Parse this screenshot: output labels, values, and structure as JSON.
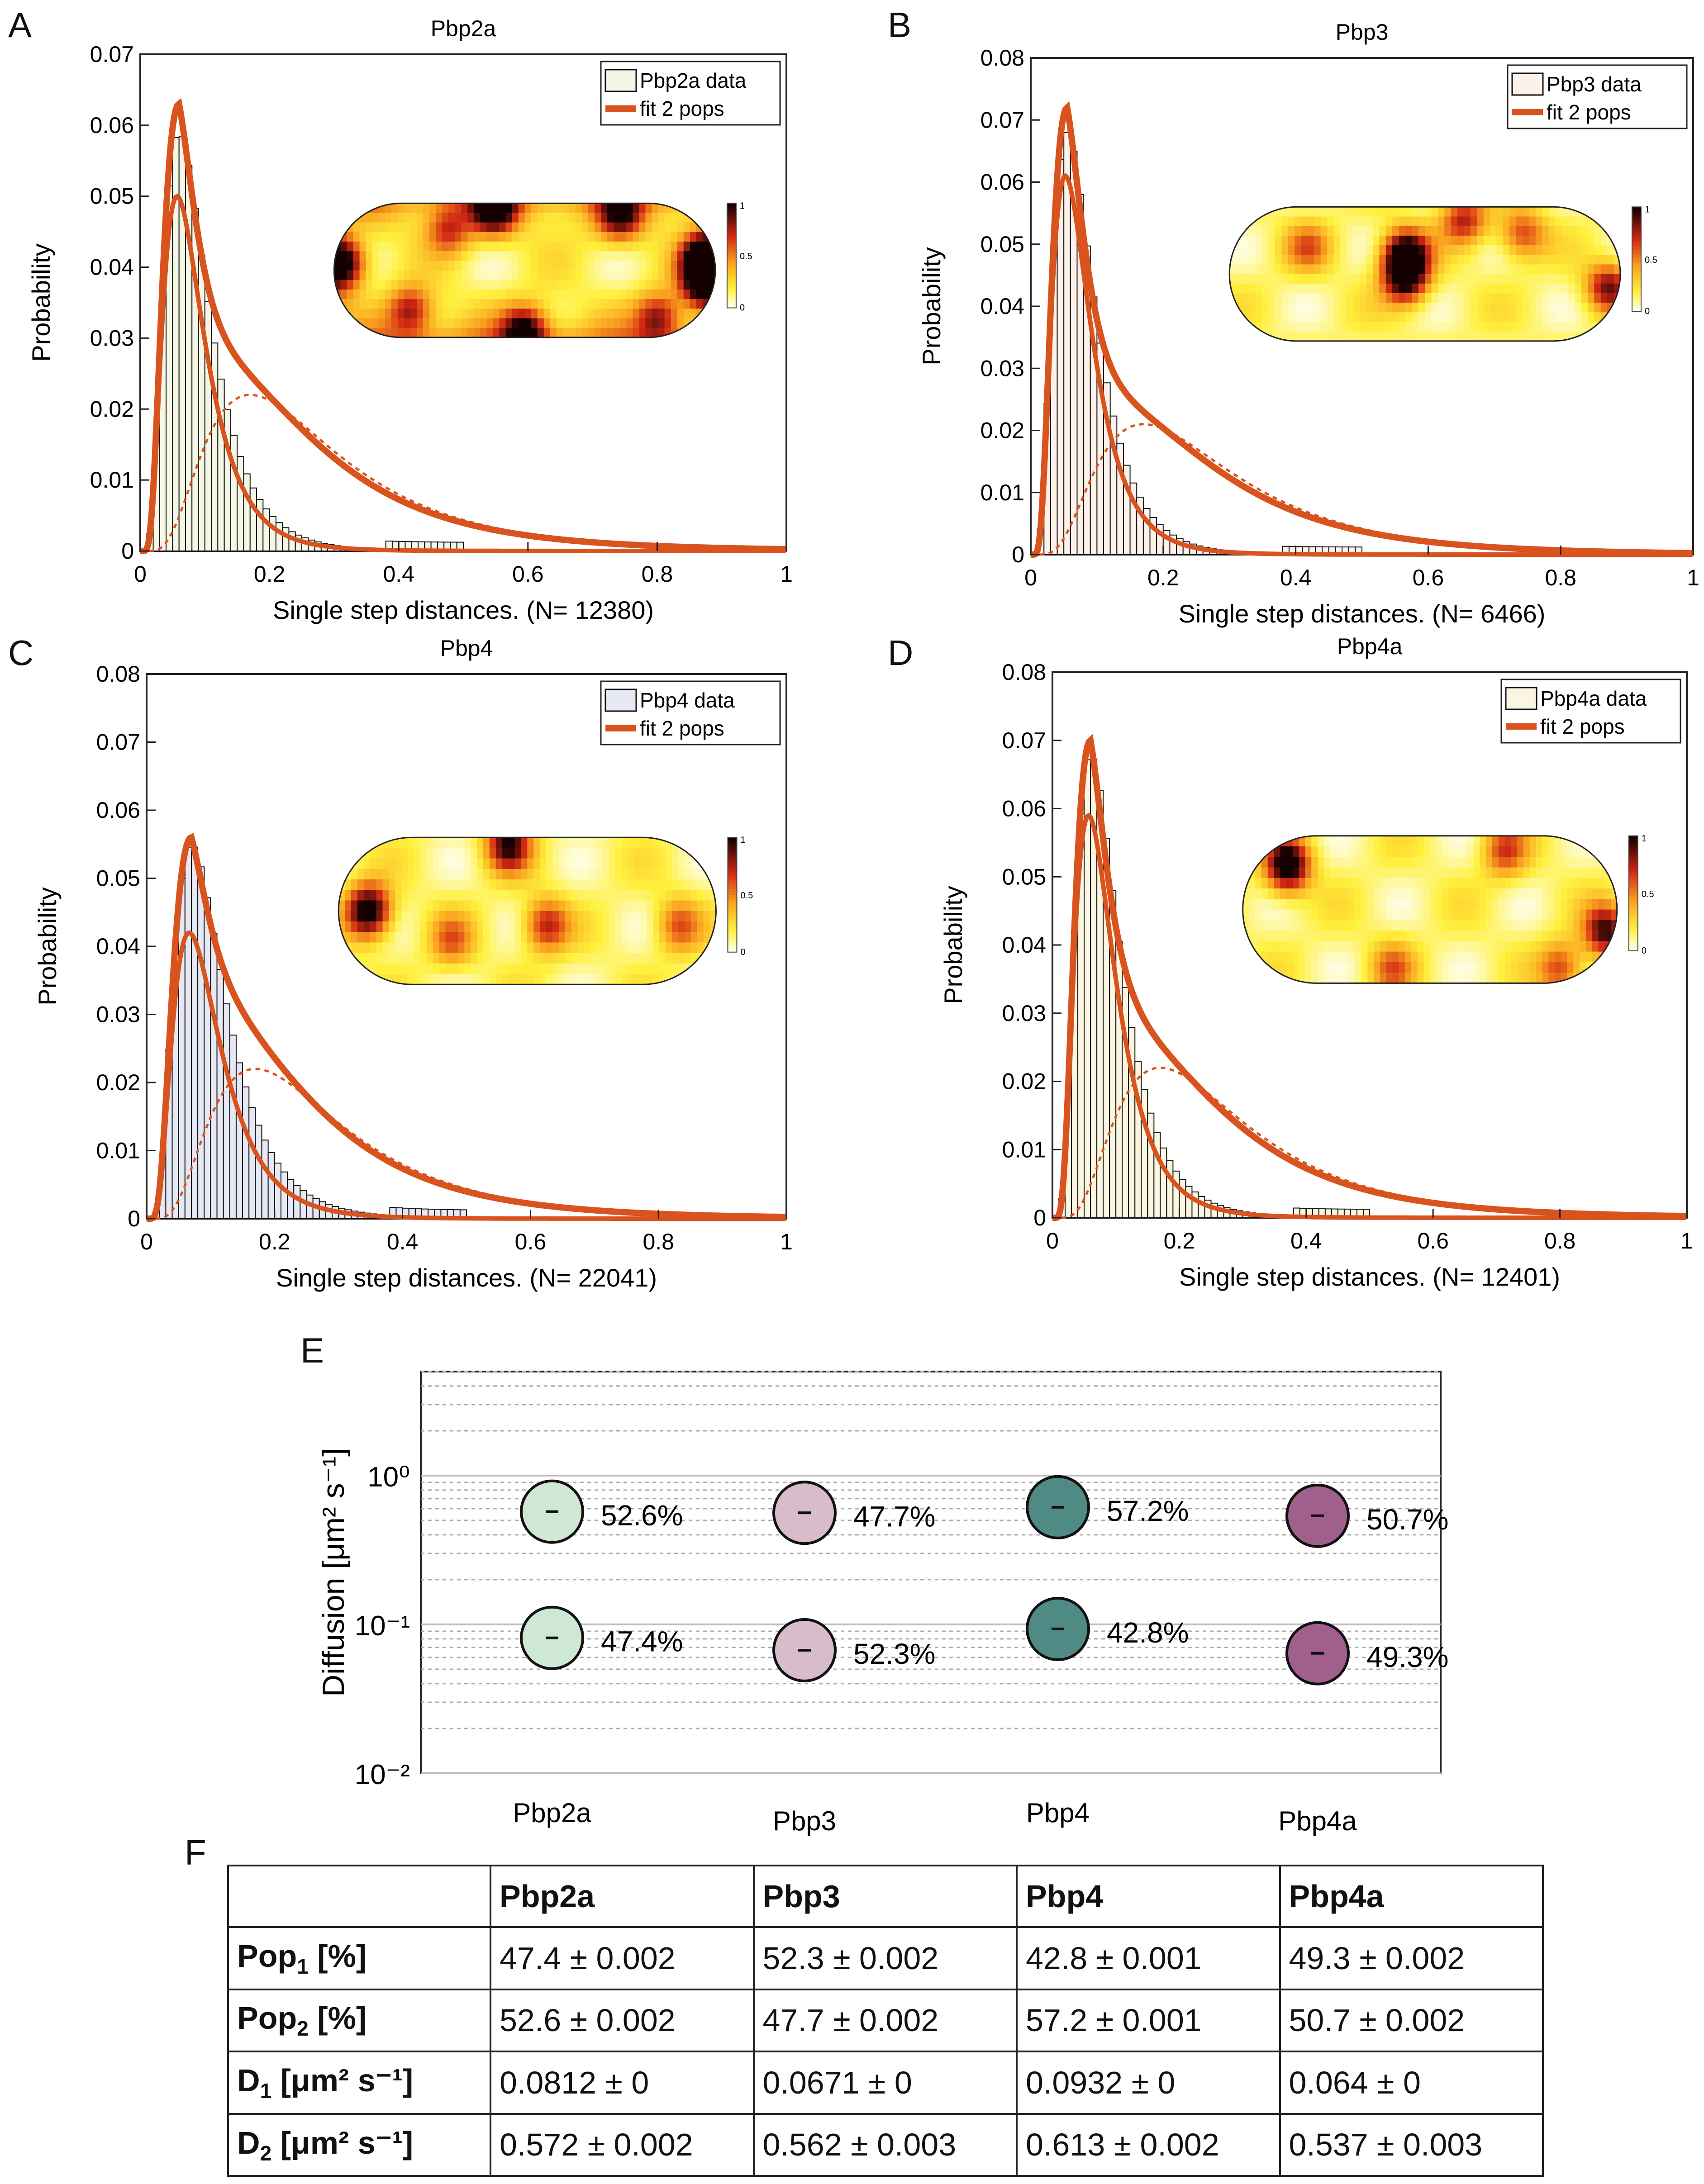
{
  "labels": {
    "A": "A",
    "B": "B",
    "C": "C",
    "D": "D",
    "E": "E",
    "F": "F"
  },
  "colors": {
    "fit": "#d9531e",
    "pbp2a_bar": "#f5f7e6",
    "pbp3_bar": "#fdf1ea",
    "pbp4_bar": "#e6e8f3",
    "pbp4a_bar": "#fbf6e1",
    "circle_pbp2a": "#cfe8d6",
    "circle_pbp3": "#d8bccc",
    "circle_pbp4": "#4f8a84",
    "circle_pbp4a": "#a15f8c"
  },
  "chart_data": [
    {
      "panel": "A",
      "type": "bar",
      "title": "Pbp2a",
      "xlabel": "Single step distances. (N= 12380)",
      "ylabel": "Probability",
      "xlim": [
        0,
        1
      ],
      "ylim": [
        0,
        0.07
      ],
      "xticks": [
        0,
        0.2,
        0.4,
        0.6,
        0.8,
        1
      ],
      "yticks": [
        0,
        0.01,
        0.02,
        0.03,
        0.04,
        0.05,
        0.06,
        0.07
      ],
      "legend": [
        "Pbp2a data",
        "fit 2 pops"
      ],
      "legend_placement": "top-right",
      "hist_peak": 0.059,
      "hist_end": 0.53,
      "fit_peak": 0.063,
      "fit_peak_x": 0.06,
      "pop1_peak": 0.05,
      "pop2_peak": 0.022,
      "fit_tail": 0.9,
      "pop1_fraction": 0.474,
      "bar_color_key": "pbp2a_bar",
      "inset": "heatmap"
    },
    {
      "panel": "B",
      "type": "bar",
      "title": "Pbp3",
      "xlabel": "Single step distances. (N= 6466)",
      "ylabel": "Probability",
      "xlim": [
        0,
        1
      ],
      "ylim": [
        0,
        0.08
      ],
      "xticks": [
        0,
        0.2,
        0.4,
        0.6,
        0.8,
        1
      ],
      "yticks": [
        0,
        0.01,
        0.02,
        0.03,
        0.04,
        0.05,
        0.06,
        0.07,
        0.08
      ],
      "legend": [
        "Pbp3 data",
        "fit 2 pops"
      ],
      "legend_placement": "top-right",
      "hist_peak": 0.068,
      "hist_end": 0.53,
      "fit_peak": 0.072,
      "fit_peak_x": 0.055,
      "pop1_peak": 0.061,
      "pop2_peak": 0.021,
      "fit_tail": 0.9,
      "pop1_fraction": 0.523,
      "bar_color_key": "pbp3_bar",
      "inset": "heatmap"
    },
    {
      "panel": "C",
      "type": "bar",
      "title": "Pbp4",
      "xlabel": "Single step distances. (N= 22041)",
      "ylabel": "Probability",
      "xlim": [
        0,
        1
      ],
      "ylim": [
        0,
        0.08
      ],
      "xticks": [
        0,
        0.2,
        0.4,
        0.6,
        0.8,
        1
      ],
      "yticks": [
        0,
        0.01,
        0.02,
        0.03,
        0.04,
        0.05,
        0.06,
        0.07,
        0.08
      ],
      "legend": [
        "Pbp4 data",
        "fit 2 pops"
      ],
      "legend_placement": "top-right",
      "hist_peak": 0.055,
      "hist_end": 0.53,
      "fit_peak": 0.056,
      "fit_peak_x": 0.07,
      "pop1_peak": 0.042,
      "pop2_peak": 0.022,
      "fit_tail": 0.9,
      "pop1_fraction": 0.428,
      "bar_color_key": "pbp4_bar",
      "inset": "heatmap"
    },
    {
      "panel": "D",
      "type": "bar",
      "title": "Pbp4a",
      "xlabel": "Single step distances. (N= 12401)",
      "ylabel": "Probability",
      "xlim": [
        0,
        1
      ],
      "ylim": [
        0,
        0.08
      ],
      "xticks": [
        0,
        0.2,
        0.4,
        0.6,
        0.8,
        1
      ],
      "yticks": [
        0,
        0.01,
        0.02,
        0.03,
        0.04,
        0.05,
        0.06,
        0.07,
        0.08
      ],
      "legend": [
        "Pbp4a data",
        "fit 2 pops"
      ],
      "legend_placement": "top-right",
      "hist_peak": 0.068,
      "hist_end": 0.53,
      "fit_peak": 0.07,
      "fit_peak_x": 0.06,
      "pop1_peak": 0.059,
      "pop2_peak": 0.022,
      "fit_tail": 0.9,
      "pop1_fraction": 0.493,
      "bar_color_key": "pbp4a_bar",
      "inset": "heatmap"
    },
    {
      "panel": "E",
      "type": "scatter",
      "ylabel": "Diffusion [μm² s⁻¹]",
      "yscale": "log",
      "ylim": [
        0.01,
        5
      ],
      "ytick_labels": [
        "10⁰",
        "10⁻¹",
        "10⁻²"
      ],
      "ytick_values": [
        1,
        0.1,
        0.01
      ],
      "categories": [
        "Pbp2a",
        "Pbp3",
        "Pbp4",
        "Pbp4a"
      ],
      "series": [
        {
          "values": [
            0.572,
            0.562,
            0.613,
            0.537
          ],
          "labels": [
            "52.6%",
            "47.7%",
            "57.2%",
            "50.7%"
          ]
        },
        {
          "values": [
            0.0812,
            0.0671,
            0.0932,
            0.064
          ],
          "labels": [
            "47.4%",
            "52.3%",
            "42.8%",
            "49.3%"
          ]
        }
      ],
      "grid": true
    }
  ],
  "table": {
    "columns": [
      "",
      "Pbp2a",
      "Pbp3",
      "Pbp4",
      "Pbp4a"
    ],
    "rows": [
      {
        "head": "Pop",
        "sub": "1",
        "unit": " [%]",
        "cells": [
          "47.4 ± 0.002",
          "52.3 ± 0.002",
          "42.8 ± 0.001",
          "49.3 ± 0.002"
        ]
      },
      {
        "head": "Pop",
        "sub": "2",
        "unit": " [%]",
        "cells": [
          "52.6 ± 0.002",
          "47.7 ± 0.002",
          "57.2 ± 0.001",
          "50.7 ± 0.002"
        ]
      },
      {
        "head": "D",
        "sub": "1",
        "unit": " [μm² s⁻¹]",
        "cells": [
          "0.0812 ± 0",
          "0.0671 ± 0",
          "0.0932 ± 0",
          "0.064 ± 0"
        ]
      },
      {
        "head": "D",
        "sub": "2",
        "unit": " [μm² s⁻¹]",
        "cells": [
          "0.572 ± 0.002",
          "0.562 ± 0.003",
          "0.613 ± 0.002",
          "0.537 ± 0.003"
        ]
      }
    ]
  }
}
